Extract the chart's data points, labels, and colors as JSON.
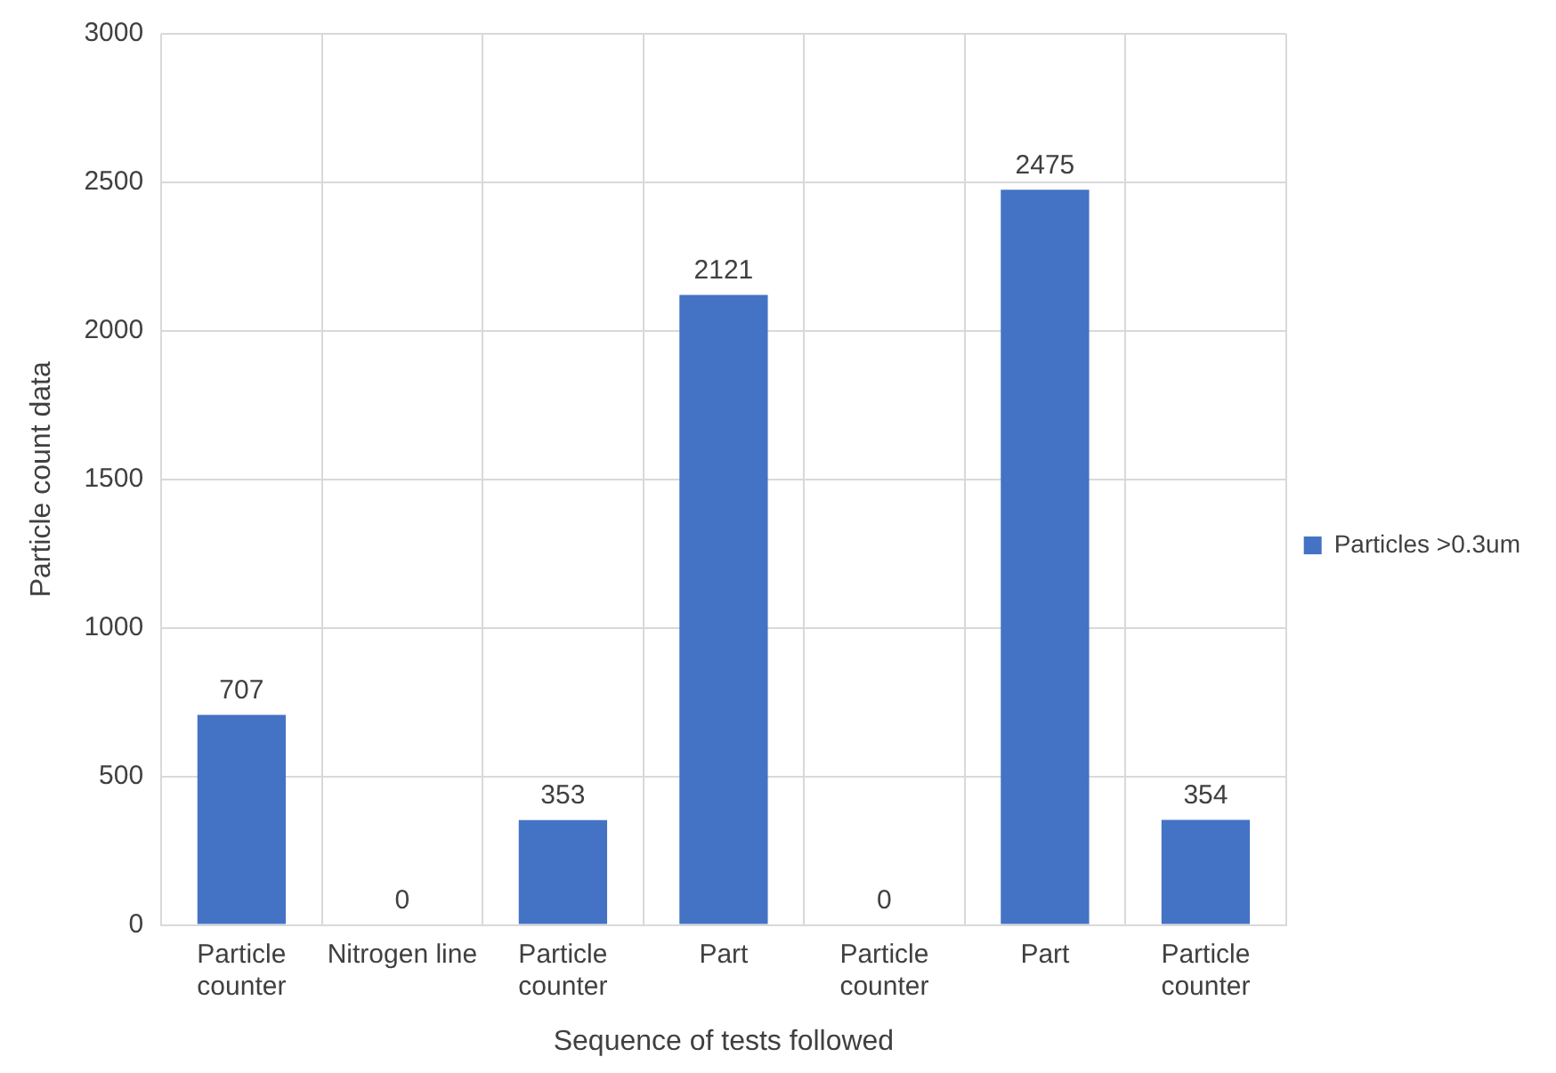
{
  "chart_data": {
    "type": "bar",
    "xlabel": "Sequence of tests followed",
    "ylabel": "Particle count data",
    "categories": [
      "Particle counter",
      "Nitrogen line",
      "Particle counter",
      "Part",
      "Particle counter",
      "Part",
      "Particle counter"
    ],
    "series": [
      {
        "name": "Particles >0.3um",
        "color": "#4472c4",
        "values": [
          707,
          0,
          353,
          2121,
          0,
          2475,
          354
        ]
      }
    ],
    "ylim": [
      0,
      3000
    ],
    "yticks": [
      0,
      500,
      1000,
      1500,
      2000,
      2500,
      3000
    ],
    "grid": true,
    "legend": "right",
    "data_labels": true
  }
}
